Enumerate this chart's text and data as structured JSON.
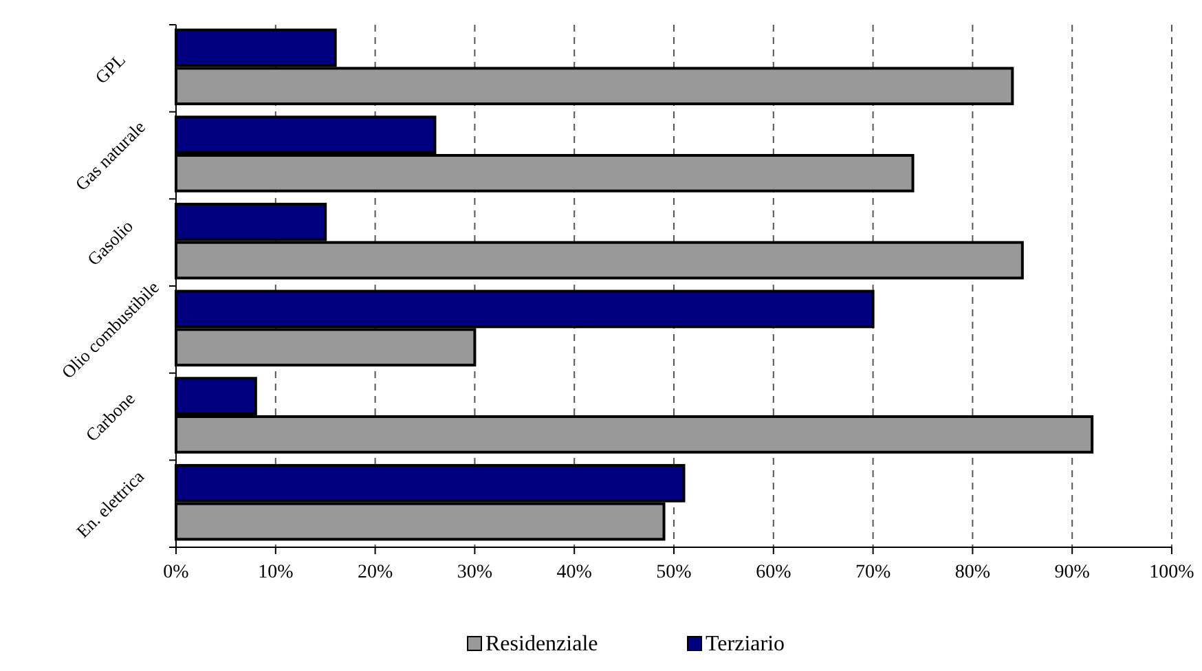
{
  "chart_data": {
    "type": "bar",
    "orientation": "horizontal",
    "categories": [
      "GPL",
      "Gas naturale",
      "Gasolio",
      "Olio combustibile",
      "Carbone",
      "En. elettrica"
    ],
    "series": [
      {
        "name": "Residenziale",
        "color": "#999999",
        "values": [
          84,
          74,
          85,
          30,
          92,
          49
        ]
      },
      {
        "name": "Terziario",
        "color": "#000080",
        "values": [
          16,
          26,
          15,
          70,
          8,
          51
        ]
      }
    ],
    "xlim": [
      0,
      100
    ],
    "xticks": [
      {
        "value": 0,
        "label": "0%"
      },
      {
        "value": 10,
        "label": "10%"
      },
      {
        "value": 20,
        "label": "20%"
      },
      {
        "value": 30,
        "label": "30%"
      },
      {
        "value": 40,
        "label": "40%"
      },
      {
        "value": 50,
        "label": "50%"
      },
      {
        "value": 60,
        "label": "60%"
      },
      {
        "value": 70,
        "label": "70%"
      },
      {
        "value": 80,
        "label": "80%"
      },
      {
        "value": 90,
        "label": "90%"
      },
      {
        "value": 100,
        "label": "100%"
      }
    ],
    "grid": "x",
    "legend": "bottom"
  }
}
